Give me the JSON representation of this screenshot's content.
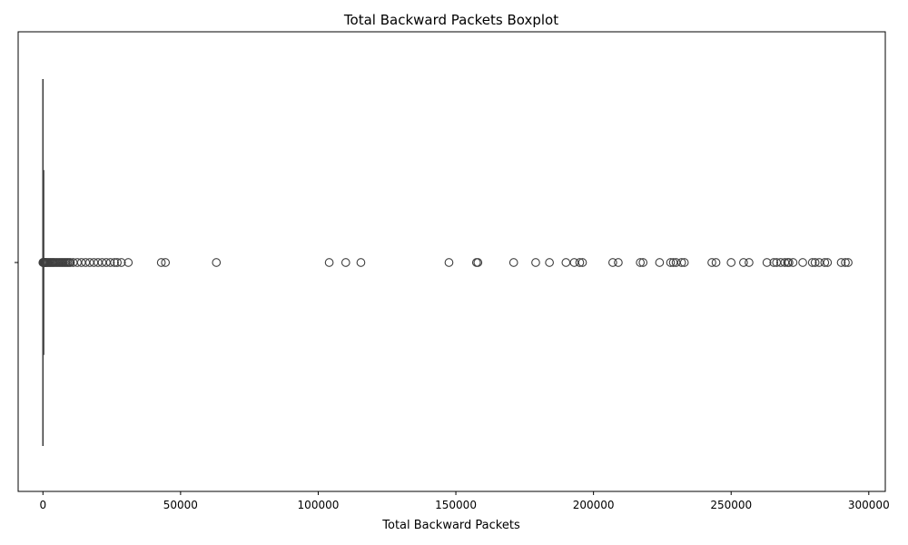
{
  "chart_data": {
    "type": "boxplot",
    "orientation": "horizontal",
    "title": "Total Backward Packets Boxplot",
    "xlabel": "Total Backward Packets",
    "ylabel": "",
    "xlim": [
      -9000,
      306000
    ],
    "xticks": [
      0,
      50000,
      100000,
      150000,
      200000,
      250000,
      300000
    ],
    "xtick_labels": [
      "0",
      "50000",
      "100000",
      "150000",
      "200000",
      "250000",
      "300000"
    ],
    "box": {
      "min": 0,
      "q1": 1,
      "median": 2,
      "q3": 4,
      "max": 10
    },
    "outliers": [
      15,
      40,
      80,
      150,
      250,
      400,
      600,
      800,
      1000,
      1300,
      1600,
      2000,
      2400,
      2800,
      3200,
      3600,
      4000,
      4500,
      5000,
      5500,
      6000,
      6500,
      7000,
      7500,
      8000,
      8500,
      9000,
      9500,
      10000,
      11000,
      12500,
      14000,
      15500,
      17000,
      18500,
      20000,
      21500,
      23000,
      24500,
      26000,
      27000,
      28500,
      31000,
      43000,
      44500,
      63000,
      104000,
      110000,
      115500,
      147500,
      157500,
      158000,
      171000,
      179000,
      184000,
      190000,
      193000,
      195000,
      196000,
      207000,
      209000,
      217000,
      218000,
      224000,
      228000,
      229000,
      230000,
      232000,
      233000,
      243000,
      244500,
      250000,
      254500,
      256500,
      263000,
      265500,
      266500,
      268000,
      269500,
      270500,
      271000,
      272500,
      276000,
      279500,
      280500,
      282000,
      284000,
      285000,
      290000,
      291500,
      292500
    ],
    "grid": false,
    "colors": {
      "box_line": "#3f3f3f",
      "axis": "#000000"
    }
  }
}
